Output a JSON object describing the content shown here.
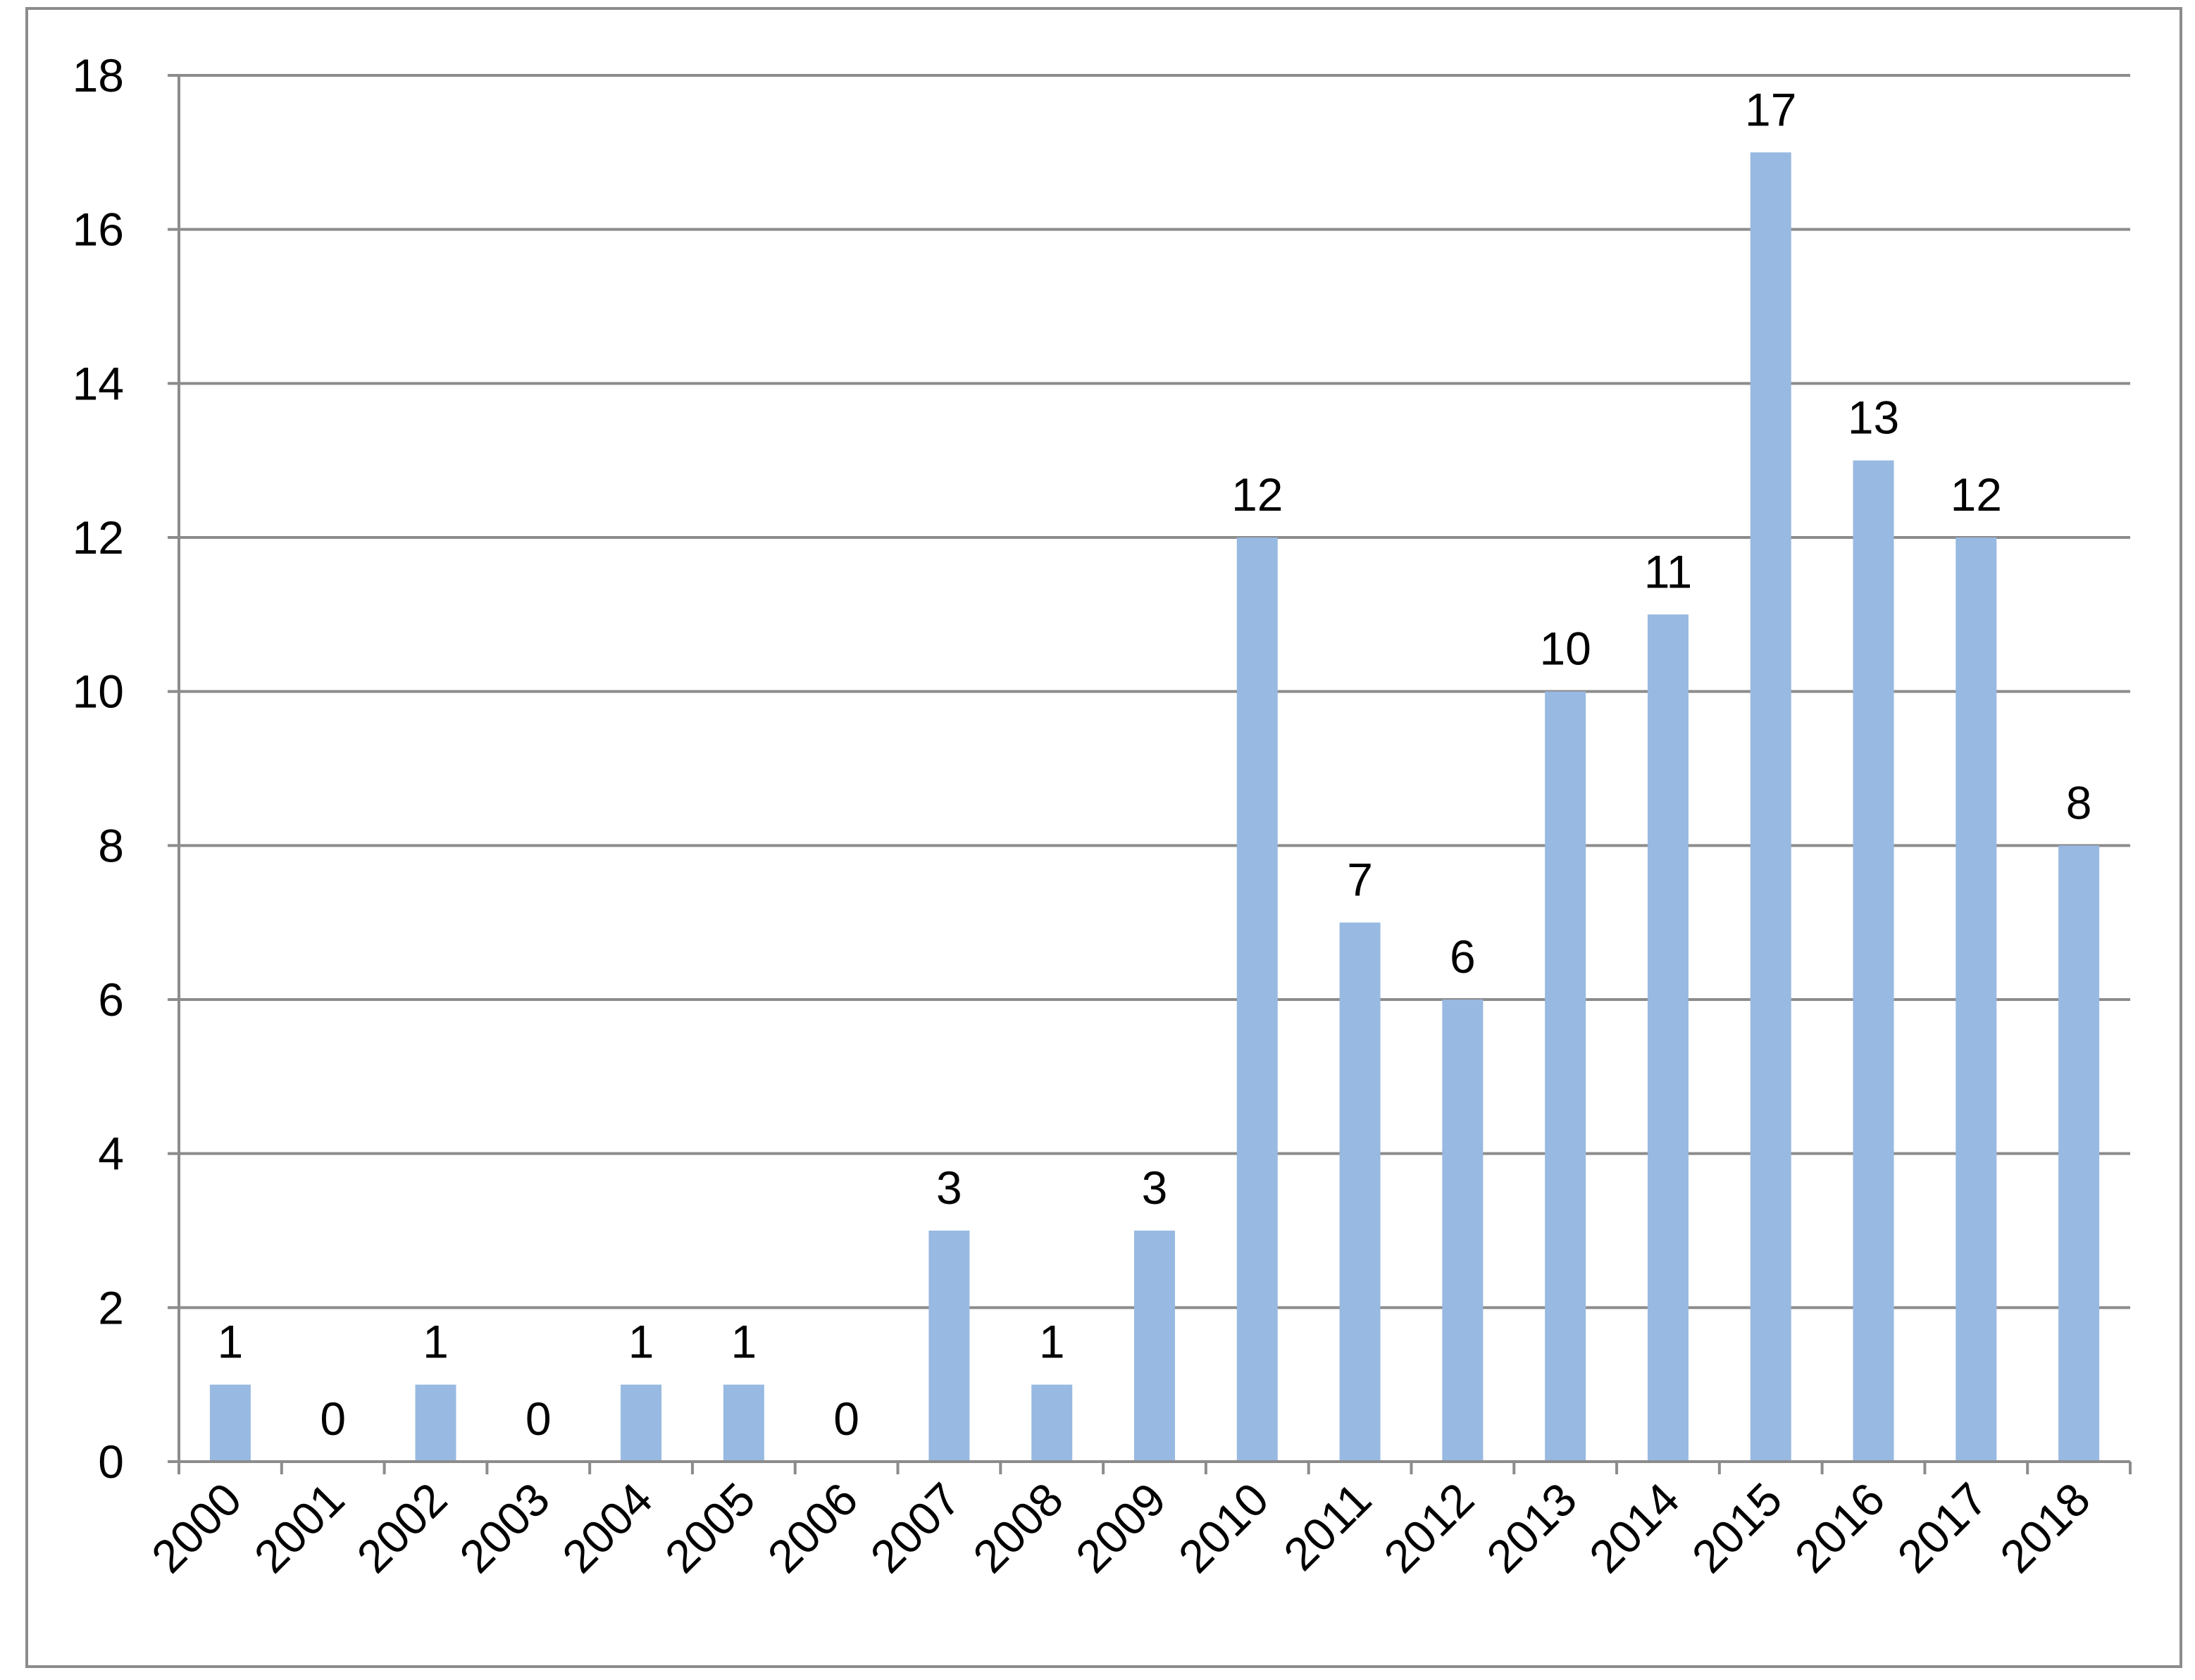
{
  "chart_data": {
    "type": "bar",
    "title": "",
    "xlabel": "",
    "ylabel": "",
    "categories": [
      "2000",
      "2001",
      "2002",
      "2003",
      "2004",
      "2005",
      "2006",
      "2007",
      "2008",
      "2009",
      "2010",
      "2011",
      "2012",
      "2013",
      "2014",
      "2015",
      "2016",
      "2017",
      "2018"
    ],
    "values": [
      1,
      0,
      1,
      0,
      1,
      1,
      0,
      3,
      1,
      3,
      12,
      7,
      6,
      10,
      11,
      17,
      13,
      12,
      8
    ],
    "data_labels": [
      "1",
      "0",
      "1",
      "0",
      "1",
      "1",
      "0",
      "3",
      "1",
      "3",
      "12",
      "7",
      "6",
      "10",
      "11",
      "17",
      "13",
      "12",
      "8"
    ],
    "ylim": [
      0,
      18
    ],
    "y_ticks": [
      "0",
      "2",
      "4",
      "6",
      "8",
      "10",
      "12",
      "14",
      "16",
      "18"
    ],
    "grid": true,
    "legend": "none",
    "colors": {
      "bar": "#98b9e1",
      "grid": "#8c8c8c",
      "axis": "#8c8c8c",
      "text": "#000000"
    }
  }
}
